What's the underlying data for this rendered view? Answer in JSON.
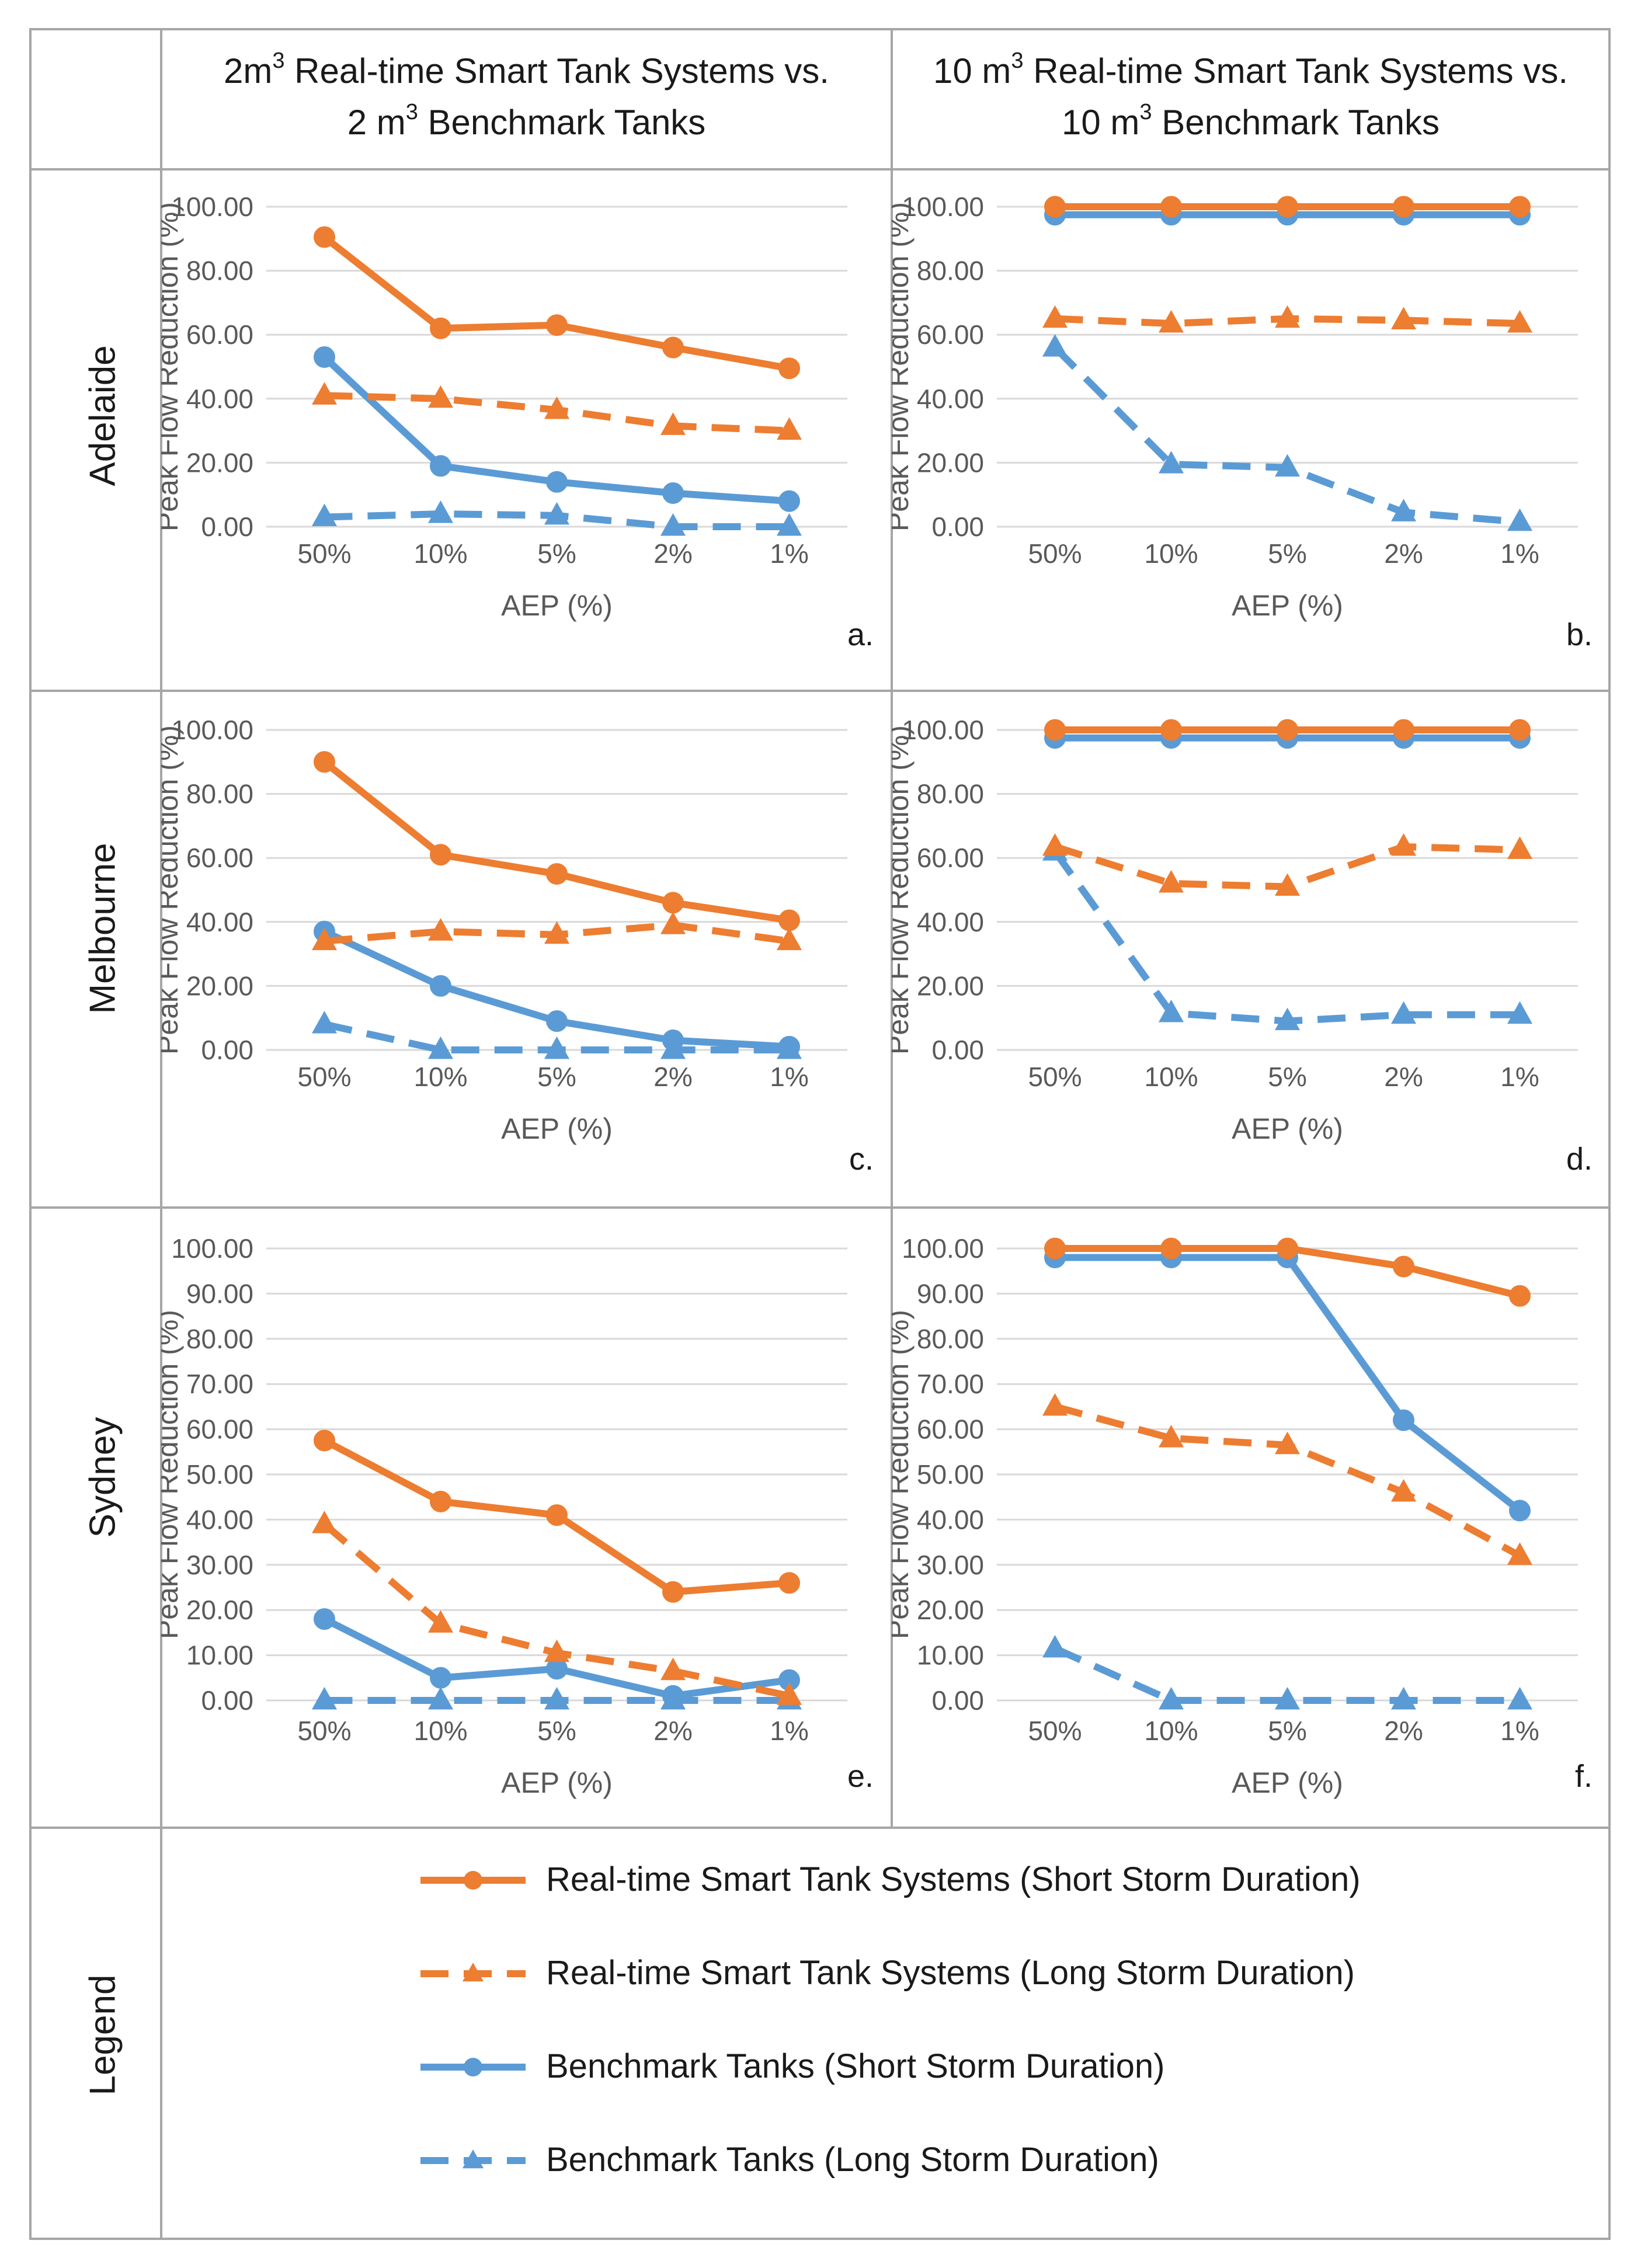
{
  "headers": {
    "col1": {
      "line1_pre": "2m",
      "line1_sup": "3",
      "line1_post": " Real-time Smart Tank Systems vs.",
      "line2_pre": "2 m",
      "line2_sup": "3",
      "line2_post": " Benchmark Tanks"
    },
    "col2": {
      "line1_pre": "10 m",
      "line1_sup": "3",
      "line1_post": " Real-time Smart Tank Systems vs.",
      "line2_pre": "10 m",
      "line2_sup": "3",
      "line2_post": " Benchmark Tanks"
    }
  },
  "rows": {
    "adelaide": "Adelaide",
    "melbourne": "Melbourne",
    "sydney": "Sydney",
    "legend": "Legend"
  },
  "colors": {
    "orange": "#ED7D31",
    "blue": "#5B9BD5",
    "grid": "#D9D9D9",
    "border": "#A6A6A6"
  },
  "legend": {
    "items": [
      {
        "label": "Real-time Smart Tank Systems (Short Storm Duration)",
        "color": "orange",
        "dash": false,
        "marker": "circle"
      },
      {
        "label": "Real-time Smart Tank Systems (Long Storm Duration)",
        "color": "orange",
        "dash": true,
        "marker": "triangle"
      },
      {
        "label": "Benchmark Tanks (Short Storm Duration)",
        "color": "blue",
        "dash": false,
        "marker": "circle"
      },
      {
        "label": "Benchmark Tanks (Long Storm Duration)",
        "color": "blue",
        "dash": true,
        "marker": "triangle"
      }
    ]
  },
  "chart_data": [
    {
      "id": "a",
      "type": "line",
      "panel_label": "a.",
      "xlabel": "AEP (%)",
      "ylabel": "Peak Flow Reduction (%)",
      "categories": [
        "50%",
        "10%",
        "5%",
        "2%",
        "1%"
      ],
      "ylim": [
        0,
        100
      ],
      "yticks": [
        "0.00",
        "20.00",
        "40.00",
        "60.00",
        "80.00",
        "100.00"
      ],
      "series": [
        {
          "name": "Real-time Smart Tank Systems (Short Storm Duration)",
          "values": [
            90.5,
            62,
            63,
            56,
            49.5
          ]
        },
        {
          "name": "Real-time Smart Tank Systems (Long Storm Duration)",
          "values": [
            41,
            40,
            36.5,
            31.5,
            30
          ]
        },
        {
          "name": "Benchmark Tanks (Short Storm Duration)",
          "values": [
            53,
            19,
            14,
            10.5,
            8
          ]
        },
        {
          "name": "Benchmark Tanks (Long Storm Duration)",
          "values": [
            3,
            4,
            3.5,
            0,
            0
          ]
        }
      ]
    },
    {
      "id": "b",
      "type": "line",
      "panel_label": "b.",
      "xlabel": "AEP (%)",
      "ylabel": "Peak Flow Reduction (%)",
      "categories": [
        "50%",
        "10%",
        "5%",
        "2%",
        "1%"
      ],
      "ylim": [
        0,
        100
      ],
      "yticks": [
        "0.00",
        "20.00",
        "40.00",
        "60.00",
        "80.00",
        "100.00"
      ],
      "series": [
        {
          "name": "Real-time Smart Tank Systems (Short Storm Duration)",
          "values": [
            100,
            100,
            100,
            100,
            100
          ]
        },
        {
          "name": "Real-time Smart Tank Systems (Long Storm Duration)",
          "values": [
            65,
            63.5,
            65,
            64.5,
            63.5
          ]
        },
        {
          "name": "Benchmark Tanks (Short Storm Duration)",
          "values": [
            97.5,
            97.5,
            97.5,
            97.5,
            97.5
          ]
        },
        {
          "name": "Benchmark Tanks (Long Storm Duration)",
          "values": [
            56,
            19.5,
            18.5,
            4.5,
            1.5
          ]
        }
      ]
    },
    {
      "id": "c",
      "type": "line",
      "panel_label": "c.",
      "xlabel": "AEP (%)",
      "ylabel": "Peak Flow Reduction (%)",
      "categories": [
        "50%",
        "10%",
        "5%",
        "2%",
        "1%"
      ],
      "ylim": [
        0,
        100
      ],
      "yticks": [
        "0.00",
        "20.00",
        "40.00",
        "60.00",
        "80.00",
        "100.00"
      ],
      "series": [
        {
          "name": "Real-time Smart Tank Systems (Short Storm Duration)",
          "values": [
            90,
            61,
            55,
            46,
            40.5
          ]
        },
        {
          "name": "Real-time Smart Tank Systems (Long Storm Duration)",
          "values": [
            34,
            37,
            36,
            39,
            34
          ]
        },
        {
          "name": "Benchmark Tanks (Short Storm Duration)",
          "values": [
            37,
            20,
            9,
            3,
            1
          ]
        },
        {
          "name": "Benchmark Tanks (Long Storm Duration)",
          "values": [
            8,
            0,
            0,
            0,
            0
          ]
        }
      ]
    },
    {
      "id": "d",
      "type": "line",
      "panel_label": "d.",
      "xlabel": "AEP (%)",
      "ylabel": "Peak Flow Reduction (%)",
      "categories": [
        "50%",
        "10%",
        "5%",
        "2%",
        "1%"
      ],
      "ylim": [
        0,
        100
      ],
      "yticks": [
        "0.00",
        "20.00",
        "40.00",
        "60.00",
        "80.00",
        "100.00"
      ],
      "series": [
        {
          "name": "Real-time Smart Tank Systems (Short Storm Duration)",
          "values": [
            100,
            100,
            100,
            100,
            100
          ]
        },
        {
          "name": "Real-time Smart Tank Systems (Long Storm Duration)",
          "values": [
            63.5,
            52,
            51,
            63.5,
            62.5
          ]
        },
        {
          "name": "Benchmark Tanks (Short Storm Duration)",
          "values": [
            97.5,
            97.5,
            97.5,
            97.5,
            97.5
          ]
        },
        {
          "name": "Benchmark Tanks (Long Storm Duration)",
          "values": [
            62,
            11.5,
            9,
            11,
            11
          ]
        }
      ]
    },
    {
      "id": "e",
      "type": "line",
      "panel_label": "e.",
      "xlabel": "AEP (%)",
      "ylabel": "Peak Flow Reduction (%)",
      "categories": [
        "50%",
        "10%",
        "5%",
        "2%",
        "1%"
      ],
      "ylim": [
        0,
        100
      ],
      "yticks": [
        "0.00",
        "10.00",
        "20.00",
        "30.00",
        "40.00",
        "50.00",
        "60.00",
        "70.00",
        "80.00",
        "90.00",
        "100.00"
      ],
      "series": [
        {
          "name": "Real-time Smart Tank Systems (Short Storm Duration)",
          "values": [
            57.5,
            44,
            41,
            24,
            26
          ]
        },
        {
          "name": "Real-time Smart Tank Systems (Long Storm Duration)",
          "values": [
            39,
            17,
            10.5,
            6.5,
            1
          ]
        },
        {
          "name": "Benchmark Tanks (Short Storm Duration)",
          "values": [
            18,
            5,
            7,
            1,
            4.5
          ]
        },
        {
          "name": "Benchmark Tanks (Long Storm Duration)",
          "values": [
            0,
            0,
            0,
            0,
            0
          ]
        }
      ]
    },
    {
      "id": "f",
      "type": "line",
      "panel_label": "f.",
      "xlabel": "AEP (%)",
      "ylabel": "Peak Flow Reduction (%)",
      "categories": [
        "50%",
        "10%",
        "5%",
        "2%",
        "1%"
      ],
      "ylim": [
        0,
        100
      ],
      "yticks": [
        "0.00",
        "10.00",
        "20.00",
        "30.00",
        "40.00",
        "50.00",
        "60.00",
        "70.00",
        "80.00",
        "90.00",
        "100.00"
      ],
      "series": [
        {
          "name": "Real-time Smart Tank Systems (Short Storm Duration)",
          "values": [
            100,
            100,
            100,
            96,
            89.5
          ]
        },
        {
          "name": "Real-time Smart Tank Systems (Long Storm Duration)",
          "values": [
            65,
            58,
            56.5,
            46,
            32
          ]
        },
        {
          "name": "Benchmark Tanks (Short Storm Duration)",
          "values": [
            98,
            98,
            98,
            62,
            42
          ]
        },
        {
          "name": "Benchmark Tanks (Long Storm Duration)",
          "values": [
            11.5,
            0,
            0,
            0,
            0
          ]
        }
      ]
    }
  ]
}
